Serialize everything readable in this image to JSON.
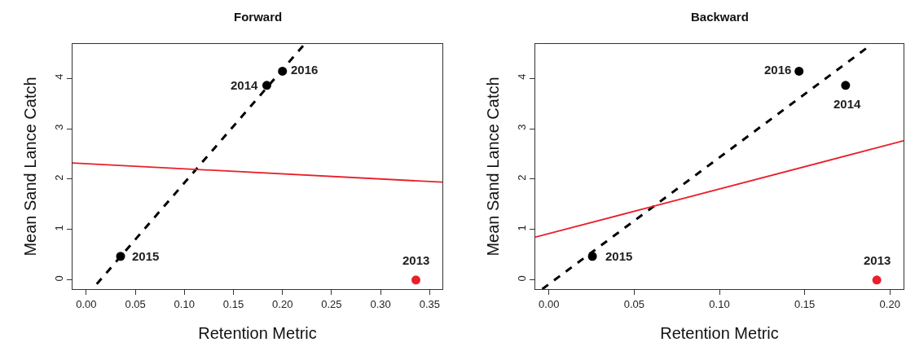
{
  "chart_data": [
    {
      "type": "scatter",
      "title": "Forward",
      "xlabel": "Retention Metric",
      "ylabel": "Mean Sand Lance Catch",
      "xlim": [
        -0.014,
        0.363
      ],
      "xticks": [
        {
          "value": 0,
          "label": "0.00"
        },
        0.05,
        {
          "value": 0.1,
          "label": "0.10"
        },
        0.15,
        {
          "value": 0.2,
          "label": "0.20"
        },
        0.25,
        {
          "value": 0.3,
          "label": "0.30"
        },
        0.35
      ],
      "ylim": [
        -0.18,
        4.68
      ],
      "yticks": [
        0,
        1,
        2,
        3,
        4
      ],
      "marker": "circle",
      "series": [
        {
          "x": [
            0.035,
            0.184,
            0.2,
            0.336
          ],
          "values": [
            0.47,
            3.86,
            4.14,
            0
          ],
          "colors": [
            "#000000",
            "#000000",
            "#000000",
            "#e8202a"
          ]
        },
        {
          "type": "line",
          "x": [
            0.0107,
            0.2217
          ],
          "values": [
            -0.08,
            4.66
          ],
          "color": "#000000",
          "line_style": "dashed",
          "marker": "none"
        },
        {
          "type": "line",
          "x": [
            -0.014,
            0.363
          ],
          "values": [
            2.32,
            1.94
          ],
          "color": "#e8202a",
          "line_style": "solid",
          "marker": "none"
        }
      ],
      "annotations": [
        {
          "text": "2015",
          "x": 0.035,
          "y": 0.47
        },
        {
          "text": "2014",
          "x": 0.184,
          "y": 3.86
        },
        {
          "text": "2016",
          "x": 0.2,
          "y": 4.14
        },
        {
          "text": "2013",
          "x": 0.336,
          "y": 0
        }
      ]
    },
    {
      "type": "scatter",
      "title": "Backward",
      "xlabel": "Retention Metric",
      "ylabel": "Mean Sand Lance Catch",
      "xlim": [
        -0.008,
        0.208
      ],
      "xticks": [
        {
          "value": 0,
          "label": "0.00"
        },
        0.05,
        {
          "value": 0.1,
          "label": "0.10"
        },
        0.15,
        {
          "value": 0.2,
          "label": "0.20"
        }
      ],
      "ylim": [
        -0.18,
        4.68
      ],
      "yticks": [
        0,
        1,
        2,
        3,
        4
      ],
      "marker": "circle",
      "series": [
        {
          "x": [
            0.0255,
            0.1467,
            0.174,
            0.1923
          ],
          "values": [
            0.47,
            4.14,
            3.86,
            0
          ],
          "colors": [
            "#000000",
            "#000000",
            "#000000",
            "#e8202a"
          ]
        },
        {
          "type": "line",
          "x": [
            -0.0039,
            0.186
          ],
          "values": [
            -0.18,
            4.59
          ],
          "color": "#000000",
          "line_style": "dashed",
          "marker": "none"
        },
        {
          "type": "line",
          "x": [
            -0.008,
            0.208
          ],
          "values": [
            0.85,
            2.76
          ],
          "color": "#e8202a",
          "line_style": "solid",
          "marker": "none"
        }
      ],
      "annotations": [
        {
          "text": "2015",
          "x": 0.0255,
          "y": 0.47
        },
        {
          "text": "2016",
          "x": 0.1467,
          "y": 4.14
        },
        {
          "text": "2014",
          "x": 0.174,
          "y": 3.86
        },
        {
          "text": "2013",
          "x": 0.1923,
          "y": 0
        }
      ]
    }
  ]
}
